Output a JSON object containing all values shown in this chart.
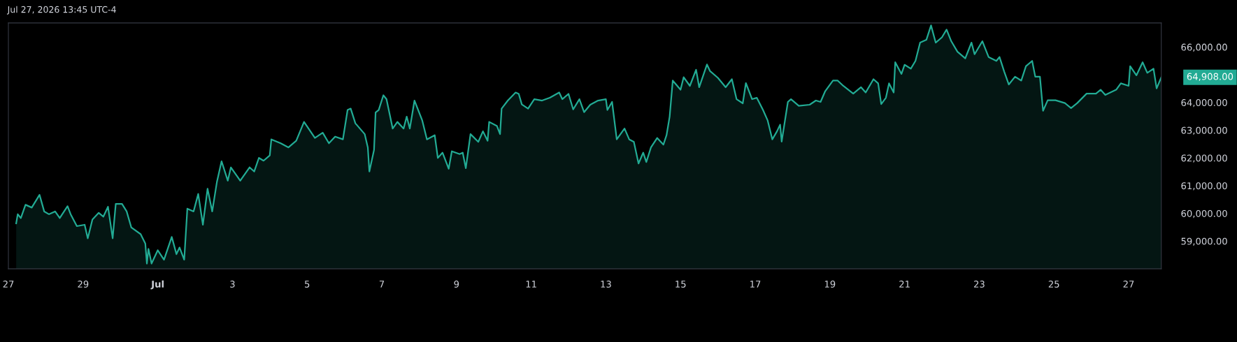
{
  "chart_data": {
    "type": "area",
    "title": "Jul 27, 2026 13:45 UTC-4",
    "x": [
      "2026-06-27T05:00",
      "2026-06-27T06:00",
      "2026-06-27T08:00",
      "2026-06-27T11:00",
      "2026-06-27T15:00",
      "2026-06-27T20:00",
      "2026-06-27T23:00",
      "2026-06-28T02:00",
      "2026-06-28T06:00",
      "2026-06-28T09:00",
      "2026-06-28T14:00",
      "2026-06-28T16:00",
      "2026-06-28T20:00",
      "2026-06-29T01:00",
      "2026-06-29T03:00",
      "2026-06-29T06:00",
      "2026-06-29T10:00",
      "2026-06-29T13:00",
      "2026-06-29T16:00",
      "2026-06-29T19:00",
      "2026-06-29T21:00",
      "2026-06-30T01:00",
      "2026-06-30T04:00",
      "2026-06-30T07:00",
      "2026-06-30T13:00",
      "2026-06-30T16:00",
      "2026-06-30T17:00",
      "2026-06-30T18:00",
      "2026-06-30T20:00",
      "2026-07-01T00:00",
      "2026-07-01T04:00",
      "2026-07-01T09:00",
      "2026-07-01T12:00",
      "2026-07-01T14:00",
      "2026-07-01T17:00",
      "2026-07-01T19:00",
      "2026-07-01T23:00",
      "2026-07-02T02:00",
      "2026-07-02T05:00",
      "2026-07-02T08:00",
      "2026-07-02T11:00",
      "2026-07-02T14:00",
      "2026-07-02T17:00",
      "2026-07-02T21:00",
      "2026-07-02T23:00",
      "2026-07-03T05:00",
      "2026-07-03T11:00",
      "2026-07-03T14:00",
      "2026-07-03T17:00",
      "2026-07-03T20:00",
      "2026-07-04T00:00",
      "2026-07-04T01:00",
      "2026-07-04T07:00",
      "2026-07-04T12:00",
      "2026-07-04T17:00",
      "2026-07-04T22:00",
      "2026-07-05T05:00",
      "2026-07-05T10:00",
      "2026-07-05T14:00",
      "2026-07-05T18:00",
      "2026-07-05T23:00",
      "2026-07-06T02:00",
      "2026-07-06T04:00",
      "2026-07-06T07:00",
      "2026-07-06T13:00",
      "2026-07-06T15:00",
      "2026-07-06T16:00",
      "2026-07-06T19:00",
      "2026-07-06T20:00",
      "2026-07-06T22:00",
      "2026-07-07T01:00",
      "2026-07-07T03:00",
      "2026-07-07T07:00",
      "2026-07-07T10:00",
      "2026-07-07T14:00",
      "2026-07-07T16:00",
      "2026-07-07T18:00",
      "2026-07-07T21:00",
      "2026-07-08T02:00",
      "2026-07-08T05:00",
      "2026-07-08T10:00",
      "2026-07-08T12:00",
      "2026-07-08T15:00",
      "2026-07-08T19:00",
      "2026-07-08T21:00",
      "2026-07-09T02:00",
      "2026-07-09T04:00",
      "2026-07-09T06:00",
      "2026-07-09T09:00",
      "2026-07-09T14:00",
      "2026-07-09T17:00",
      "2026-07-09T20:00",
      "2026-07-09T21:00",
      "2026-07-10T02:00",
      "2026-07-10T04:00",
      "2026-07-10T05:00",
      "2026-07-10T09:00",
      "2026-07-10T14:00",
      "2026-07-10T16:00",
      "2026-07-10T18:00",
      "2026-07-10T22:00",
      "2026-07-11T02:00",
      "2026-07-11T07:00",
      "2026-07-11T12:00",
      "2026-07-11T18:00",
      "2026-07-11T20:00",
      "2026-07-12T00:00",
      "2026-07-12T03:00",
      "2026-07-12T07:00",
      "2026-07-12T10:00",
      "2026-07-12T14:00",
      "2026-07-12T19:00",
      "2026-07-13T00:00",
      "2026-07-13T01:00",
      "2026-07-13T04:00",
      "2026-07-13T07:00",
      "2026-07-13T12:00",
      "2026-07-13T15:00",
      "2026-07-13T18:00",
      "2026-07-13T21:00",
      "2026-07-14T00:00",
      "2026-07-14T02:00",
      "2026-07-14T05:00",
      "2026-07-14T09:00",
      "2026-07-14T13:00",
      "2026-07-14T15:00",
      "2026-07-14T17:00",
      "2026-07-14T19:00",
      "2026-07-15T00:00",
      "2026-07-15T02:00",
      "2026-07-15T06:00",
      "2026-07-15T10:00",
      "2026-07-15T12:00",
      "2026-07-15T17:00",
      "2026-07-15T19:00",
      "2026-07-16T00:00",
      "2026-07-16T05:00",
      "2026-07-16T09:00",
      "2026-07-16T12:00",
      "2026-07-16T16:00",
      "2026-07-16T18:00",
      "2026-07-16T22:00",
      "2026-07-17T01:00",
      "2026-07-17T05:00",
      "2026-07-17T08:00",
      "2026-07-17T11:00",
      "2026-07-17T14:00",
      "2026-07-17T16:00",
      "2026-07-17T17:00",
      "2026-07-17T21:00",
      "2026-07-17T23:00",
      "2026-07-18T04:00",
      "2026-07-18T11:00",
      "2026-07-18T15:00",
      "2026-07-18T18:00",
      "2026-07-18T21:00",
      "2026-07-19T02:00",
      "2026-07-19T05:00",
      "2026-07-19T08:00",
      "2026-07-19T15:00",
      "2026-07-19T20:00",
      "2026-07-19T23:00",
      "2026-07-20T04:00",
      "2026-07-20T07:00",
      "2026-07-20T09:00",
      "2026-07-20T12:00",
      "2026-07-20T14:00",
      "2026-07-20T17:00",
      "2026-07-20T18:00",
      "2026-07-20T22:00",
      "2026-07-21T00:00",
      "2026-07-21T04:00",
      "2026-07-21T07:00",
      "2026-07-21T10:00",
      "2026-07-21T14:00",
      "2026-07-21T17:00",
      "2026-07-21T20:00",
      "2026-07-22T00:00",
      "2026-07-22T03:00",
      "2026-07-22T06:00",
      "2026-07-22T10:00",
      "2026-07-22T15:00",
      "2026-07-22T19:00",
      "2026-07-22T21:00",
      "2026-07-23T02:00",
      "2026-07-23T06:00",
      "2026-07-23T11:00",
      "2026-07-23T13:00",
      "2026-07-23T16:00",
      "2026-07-23T19:00",
      "2026-07-23T23:00",
      "2026-07-24T03:00",
      "2026-07-24T06:00",
      "2026-07-24T10:00",
      "2026-07-24T12:00",
      "2026-07-24T15:00",
      "2026-07-24T17:00",
      "2026-07-24T20:00",
      "2026-07-25T01:00",
      "2026-07-25T07:00",
      "2026-07-25T11:00",
      "2026-07-25T15:00",
      "2026-07-25T21:00",
      "2026-07-26T03:00",
      "2026-07-26T06:00",
      "2026-07-26T09:00",
      "2026-07-26T16:00",
      "2026-07-26T19:00",
      "2026-07-27T00:00",
      "2026-07-27T01:00",
      "2026-07-27T05:00",
      "2026-07-27T09:00",
      "2026-07-27T12:00",
      "2026-07-27T16:00",
      "2026-07-27T18:00",
      "2026-07-27T21:00"
    ],
    "series": [
      {
        "color": "#22ab94",
        "values": [
          59640,
          59970,
          59830,
          60310,
          60210,
          60670,
          60070,
          59970,
          60070,
          59830,
          60260,
          59970,
          59540,
          59590,
          59100,
          59780,
          60020,
          59880,
          60240,
          59100,
          60340,
          60340,
          60070,
          59490,
          59250,
          58910,
          58190,
          58720,
          58190,
          58670,
          58330,
          59150,
          58530,
          58770,
          58330,
          60170,
          60070,
          60700,
          59590,
          60890,
          60070,
          61130,
          61880,
          61180,
          61660,
          61180,
          61660,
          61510,
          62000,
          61900,
          62090,
          62670,
          62530,
          62380,
          62620,
          63300,
          62720,
          62910,
          62530,
          62770,
          62670,
          63730,
          63780,
          63250,
          62860,
          62380,
          61510,
          62290,
          63640,
          63730,
          64260,
          64120,
          63060,
          63300,
          63060,
          63490,
          63060,
          64070,
          63350,
          62670,
          62820,
          62000,
          62190,
          61610,
          62240,
          62140,
          62190,
          61630,
          62860,
          62580,
          62960,
          62620,
          63300,
          63150,
          62860,
          63780,
          64070,
          64360,
          64310,
          63930,
          63780,
          64120,
          64070,
          64170,
          64360,
          64120,
          64310,
          63750,
          64120,
          63650,
          63920,
          64070,
          64120,
          63730,
          64020,
          62670,
          63060,
          62670,
          62580,
          61800,
          62190,
          61850,
          62380,
          62720,
          62480,
          62820,
          63490,
          64790,
          64460,
          64910,
          64600,
          65180,
          64550,
          65370,
          65130,
          64890,
          64550,
          64840,
          64120,
          63970,
          64700,
          64120,
          64170,
          63730,
          63350,
          62670,
          62960,
          63200,
          62590,
          64020,
          64120,
          63880,
          63920,
          64070,
          64020,
          64410,
          64790,
          64790,
          64630,
          64320,
          64550,
          64360,
          64840,
          64690,
          63940,
          64170,
          64690,
          64360,
          65450,
          65030,
          65360,
          65220,
          65500,
          66160,
          66260,
          66780,
          66160,
          66350,
          66630,
          66210,
          65830,
          65590,
          66160,
          65740,
          66210,
          65640,
          65500,
          65640,
          65120,
          64650,
          64930,
          64790,
          65310,
          65500,
          64930,
          64930,
          63700,
          64080,
          64080,
          63980,
          63800,
          63980,
          64320,
          64320,
          64460,
          64270,
          64460,
          64690,
          64600,
          65310,
          64980,
          65450,
          65070,
          65220,
          64510,
          64908
        ]
      }
    ],
    "xlim": [
      "2026-06-27T00:00",
      "2026-07-27T21:00"
    ],
    "xticks": [
      {
        "value": "2026-06-27",
        "label": "27"
      },
      {
        "value": "2026-06-29",
        "label": "29"
      },
      {
        "value": "2026-07-01",
        "label": "Jul"
      },
      {
        "value": "2026-07-03",
        "label": "3"
      },
      {
        "value": "2026-07-05",
        "label": "5"
      },
      {
        "value": "2026-07-07",
        "label": "7"
      },
      {
        "value": "2026-07-09",
        "label": "9"
      },
      {
        "value": "2026-07-11",
        "label": "11"
      },
      {
        "value": "2026-07-13",
        "label": "13"
      },
      {
        "value": "2026-07-15",
        "label": "15"
      },
      {
        "value": "2026-07-17",
        "label": "17"
      },
      {
        "value": "2026-07-19",
        "label": "19"
      },
      {
        "value": "2026-07-21",
        "label": "21"
      },
      {
        "value": "2026-07-23",
        "label": "23"
      },
      {
        "value": "2026-07-25",
        "label": "25"
      },
      {
        "value": "2026-07-27",
        "label": "27"
      }
    ],
    "ylim": [
      58000,
      66870
    ],
    "yticks": [
      {
        "value": 59000,
        "label": "59,000.00"
      },
      {
        "value": 60000,
        "label": "60,000.00"
      },
      {
        "value": 61000,
        "label": "61,000.00"
      },
      {
        "value": 62000,
        "label": "62,000.00"
      },
      {
        "value": 63000,
        "label": "63,000.00"
      },
      {
        "value": 64000,
        "label": "64,000.00"
      },
      {
        "value": 66000,
        "label": "66,000.00"
      }
    ],
    "annotations": [
      {
        "text": "64,908.00",
        "x": "2026-07-27T21:00",
        "y": 64908
      }
    ],
    "grid": false,
    "legend": false
  }
}
